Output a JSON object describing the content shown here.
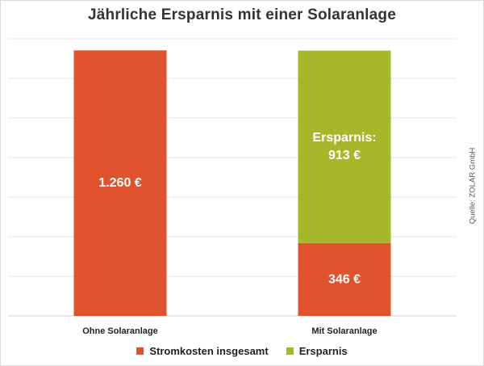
{
  "chart_data": {
    "type": "bar",
    "stacked": true,
    "title": "Jährliche Ersparnis mit einer Solaranlage",
    "source": "Quelle: ZOLAR GmbH",
    "categories": [
      "Ohne Solaranlage",
      "Mit Solaranlage"
    ],
    "series": [
      {
        "name": "Stromkosten insgesamt",
        "color": "#e0522b",
        "values": [
          1260,
          346
        ]
      },
      {
        "name": "Ersparnis",
        "color": "#a5b82a",
        "values": [
          0,
          913
        ]
      }
    ],
    "data_labels": {
      "Ohne Solaranlage": {
        "Stromkosten insgesamt": "1.260 €"
      },
      "Mit Solaranlage": {
        "Stromkosten insgesamt": "346 €",
        "Ersparnis": [
          "Ersparnis:",
          "913 €"
        ]
      }
    },
    "ylim": [
      0,
      1315
    ],
    "grid": true,
    "legend_position": "bottom"
  }
}
